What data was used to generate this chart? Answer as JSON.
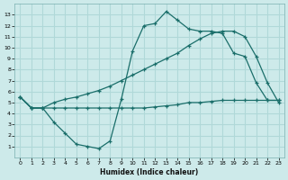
{
  "xlabel": "Humidex (Indice chaleur)",
  "bg_color": "#cdeaea",
  "grid_color": "#b0d8d8",
  "line_color": "#1a6e6a",
  "xlim": [
    -0.5,
    23.5
  ],
  "ylim": [
    0,
    14
  ],
  "xticks": [
    0,
    1,
    2,
    3,
    4,
    5,
    6,
    7,
    8,
    9,
    10,
    11,
    12,
    13,
    14,
    15,
    16,
    17,
    18,
    19,
    20,
    21,
    22,
    23
  ],
  "yticks": [
    1,
    2,
    3,
    4,
    5,
    6,
    7,
    8,
    9,
    10,
    11,
    12,
    13
  ],
  "line1_x": [
    0,
    1,
    2,
    3,
    4,
    5,
    6,
    7,
    8,
    9,
    10,
    11,
    12,
    13,
    14,
    15,
    16,
    17,
    18,
    19,
    20,
    21,
    22,
    23
  ],
  "line1_y": [
    5.5,
    4.5,
    4.5,
    3.2,
    2.2,
    1.2,
    1.0,
    0.8,
    1.5,
    5.3,
    9.7,
    12.0,
    12.2,
    13.3,
    12.5,
    11.7,
    11.5,
    11.5,
    11.3,
    9.5,
    9.2,
    6.8,
    5.2,
    5.2
  ],
  "line2_x": [
    0,
    1,
    2,
    3,
    4,
    5,
    6,
    7,
    8,
    9,
    10,
    11,
    12,
    13,
    14,
    15,
    16,
    17,
    18,
    19,
    20,
    21,
    22,
    23
  ],
  "line2_y": [
    5.5,
    4.5,
    4.5,
    5.0,
    5.3,
    5.5,
    5.8,
    6.1,
    6.5,
    7.0,
    7.5,
    8.0,
    8.5,
    9.0,
    9.5,
    10.2,
    10.8,
    11.3,
    11.5,
    11.5,
    11.0,
    9.2,
    6.8,
    5.0
  ],
  "line3_x": [
    0,
    1,
    2,
    3,
    4,
    5,
    6,
    7,
    8,
    9,
    10,
    11,
    12,
    13,
    14,
    15,
    16,
    17,
    18,
    19,
    20,
    21,
    22,
    23
  ],
  "line3_y": [
    5.5,
    4.5,
    4.5,
    4.5,
    4.5,
    4.5,
    4.5,
    4.5,
    4.5,
    4.5,
    4.5,
    4.5,
    4.6,
    4.7,
    4.8,
    5.0,
    5.0,
    5.1,
    5.2,
    5.2,
    5.2,
    5.2,
    5.2,
    5.2
  ]
}
